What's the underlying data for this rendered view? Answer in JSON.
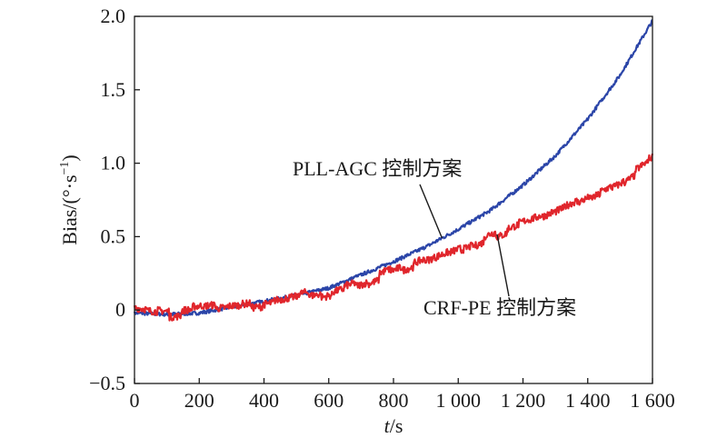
{
  "chart_data": {
    "type": "line",
    "xlabel_italic": "t",
    "xlabel_unit": "/s",
    "ylabel": "Bias/(°·s",
    "ylabel_sup": "−1",
    "ylabel_close": ")",
    "xlim": [
      0,
      1600
    ],
    "ylim": [
      -0.5,
      2.0
    ],
    "x_ticks": [
      0,
      200,
      400,
      600,
      800,
      1000,
      1200,
      1400,
      1600
    ],
    "x_tick_labels": [
      "0",
      "200",
      "400",
      "600",
      "800",
      "1 000",
      "1 200",
      "1 400",
      "1 600"
    ],
    "y_ticks": [
      -0.5,
      0,
      0.5,
      1.0,
      1.5,
      2.0
    ],
    "y_tick_labels": [
      "−0.5",
      "0",
      "0.5",
      "1.0",
      "1.5",
      "2.0"
    ],
    "grid": false,
    "series": [
      {
        "name": "PLL-AGC 控制方案",
        "color": "#2b45a8",
        "x": [
          0,
          100,
          200,
          300,
          400,
          500,
          600,
          700,
          800,
          900,
          1000,
          1100,
          1200,
          1300,
          1400,
          1500,
          1600
        ],
        "y": [
          -0.02,
          -0.03,
          -0.02,
          0.02,
          0.06,
          0.1,
          0.15,
          0.24,
          0.33,
          0.43,
          0.55,
          0.68,
          0.85,
          1.05,
          1.3,
          1.6,
          1.97
        ]
      },
      {
        "name": "CRF-PE 控制方案",
        "color": "#e0262c",
        "x": [
          0,
          100,
          200,
          300,
          400,
          500,
          600,
          700,
          800,
          900,
          1000,
          1100,
          1200,
          1300,
          1400,
          1500,
          1600
        ],
        "y": [
          0.0,
          -0.02,
          0.0,
          0.02,
          0.04,
          0.08,
          0.12,
          0.18,
          0.26,
          0.33,
          0.41,
          0.5,
          0.58,
          0.67,
          0.77,
          0.87,
          1.02
        ]
      }
    ],
    "annotations": [
      {
        "text": "PLL-AGC 控制方案",
        "series": 0,
        "point_x": 950
      },
      {
        "text": "CRF-PE 控制方案",
        "series": 1,
        "point_x": 1120
      }
    ]
  }
}
